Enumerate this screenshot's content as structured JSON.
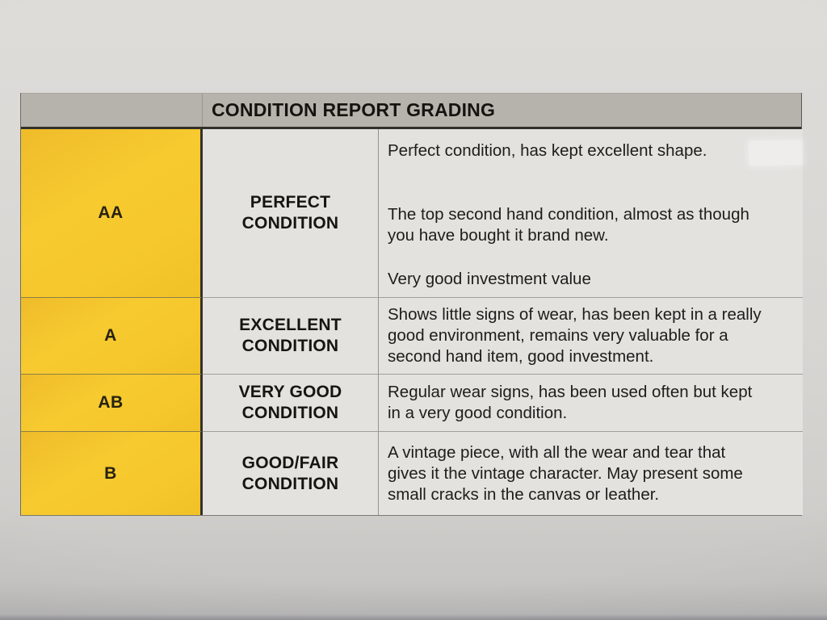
{
  "document": {
    "title": "CONDITION REPORT GRADING",
    "rows": [
      {
        "grade": "AA",
        "label_lines": [
          "PERFECT",
          "CONDITION"
        ],
        "paragraphs": [
          [
            "Perfect condition, has kept excellent shape."
          ],
          [
            "The top second hand condition, almost as though",
            "you have bought it brand new."
          ],
          [
            "Very good investment value"
          ]
        ]
      },
      {
        "grade": "A",
        "label_lines": [
          "EXCELLENT",
          "CONDITION"
        ],
        "paragraphs": [
          [
            "Shows little signs of wear, has been kept in a really",
            "good environment, remains very valuable for a",
            "second hand item, good investment."
          ]
        ]
      },
      {
        "grade": "AB",
        "label_lines": [
          "VERY GOOD",
          "CONDITION"
        ],
        "paragraphs": [
          [
            "Regular wear signs, has been used often but kept",
            "in a very good condition."
          ]
        ]
      },
      {
        "grade": "B",
        "label_lines": [
          "GOOD/FAIR",
          "CONDITION"
        ],
        "paragraphs": [
          [
            "A vintage piece, with all the wear and tear that",
            "gives it the vintage character. May present some",
            "small cracks in the canvas or leather."
          ]
        ]
      }
    ],
    "colors": {
      "grade_column_yellow": "#f6c82c",
      "header_bar_gray": "#b6b3ac",
      "cell_background": "#e4e2df",
      "paper_background": "#d8d6d3",
      "heavy_border": "#32302a",
      "text": "#1e1d1a"
    }
  }
}
